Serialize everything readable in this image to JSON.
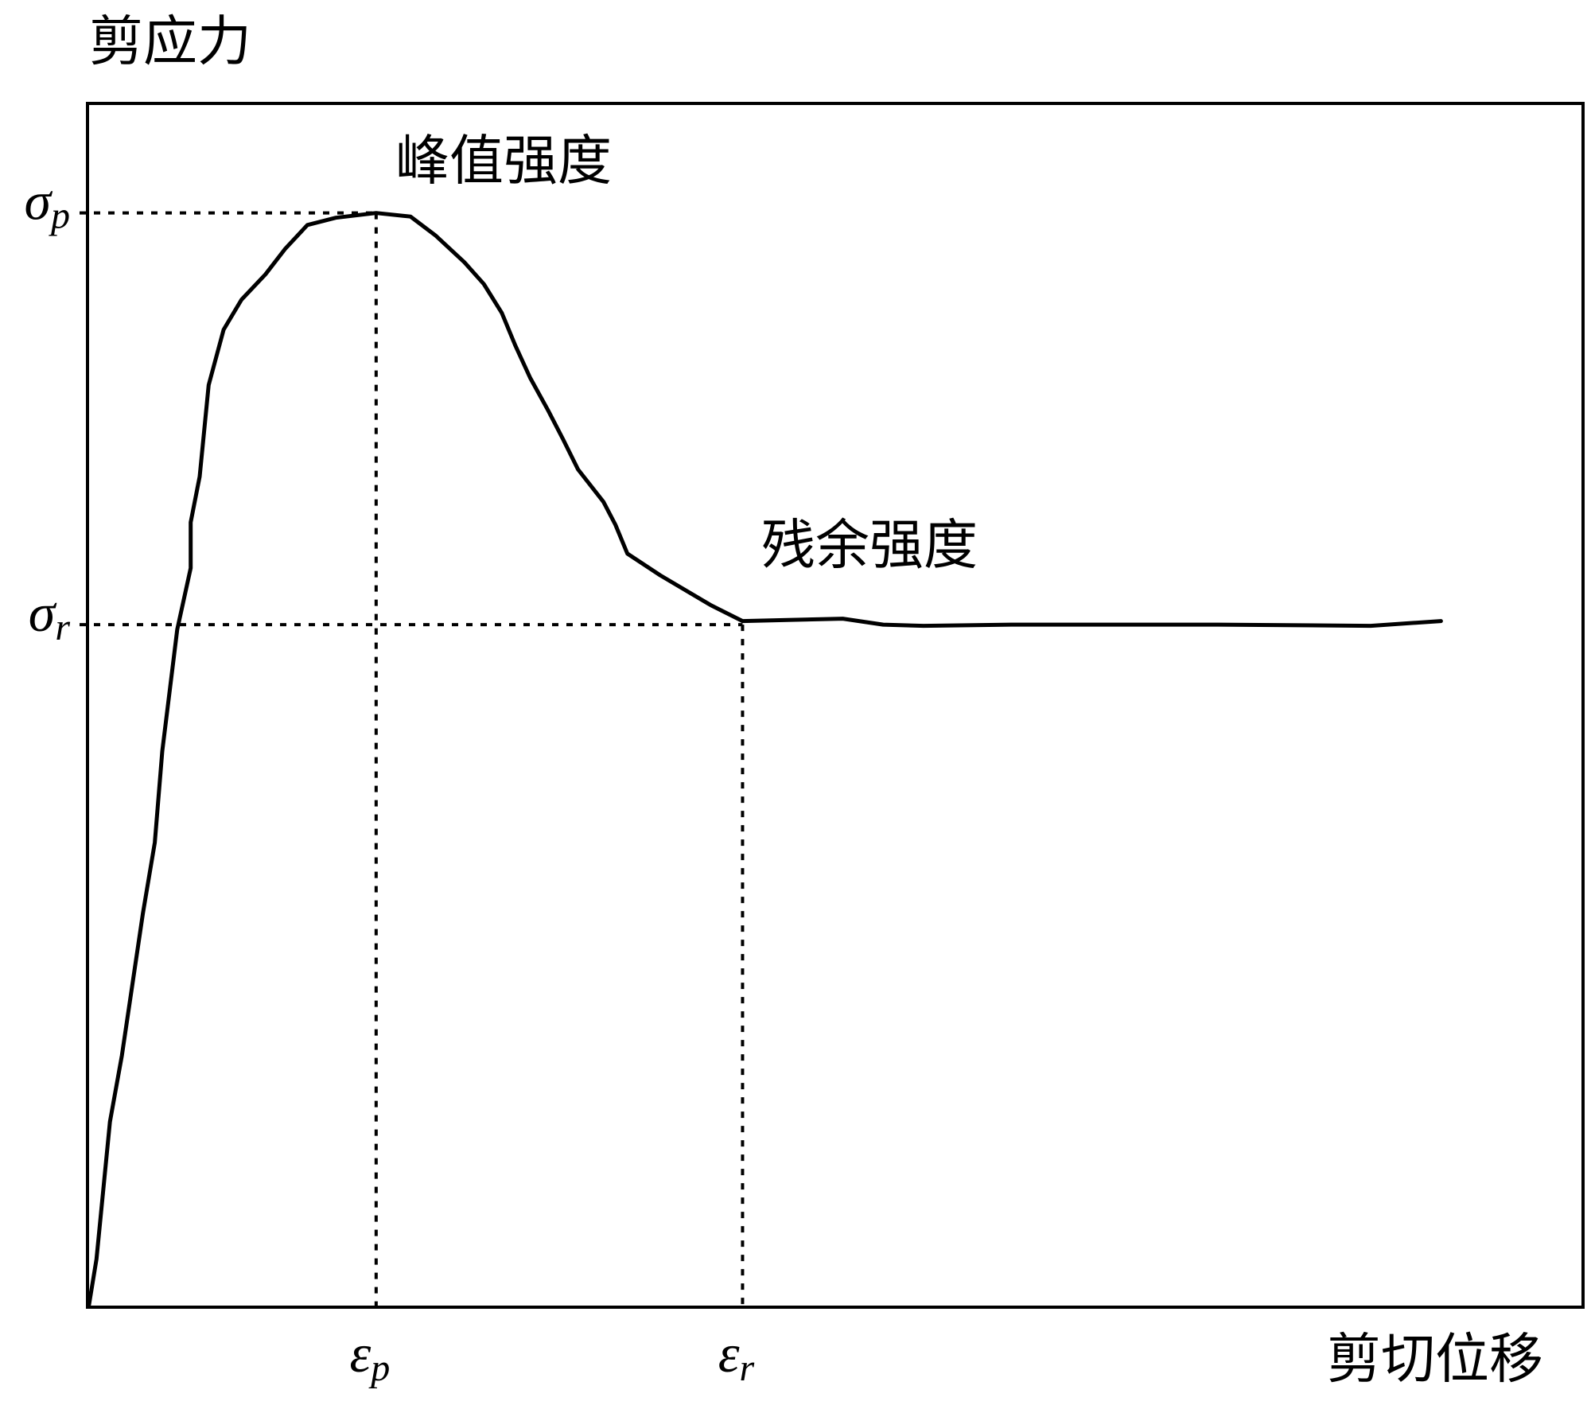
{
  "chart_data": {
    "type": "line",
    "y_label": "剪应力",
    "x_label": "剪切位移",
    "annotations": [
      "峰值强度",
      "残余强度"
    ],
    "xlim": [
      0,
      100
    ],
    "ylim": [
      0,
      100
    ],
    "xticks": [
      {
        "value": 19.3,
        "label": "εp"
      },
      {
        "value": 43.8,
        "label": "εr"
      }
    ],
    "yticks": [
      {
        "value": 90.9,
        "label": "σp"
      },
      {
        "value": 56.7,
        "label": "σr"
      }
    ],
    "grid": false,
    "series": [
      {
        "color": "#000000",
        "x": [
          0.1,
          0.6,
          1.5,
          2.3,
          3.0,
          3.7,
          4.5,
          5.0,
          6.0,
          6.9,
          6.9,
          7.5,
          8.1,
          9.1,
          10.3,
          11.9,
          13.2,
          14.7,
          16.6,
          19.3,
          21.6,
          23.3,
          25.2,
          26.5,
          27.7,
          28.6,
          29.6,
          30.8,
          31.8,
          32.8,
          34.5,
          35.3,
          36.1,
          38.3,
          41.7,
          43.8,
          47.1,
          50.5,
          53.2,
          55.9,
          62.0,
          75.6,
          85.8,
          90.5
        ],
        "values": [
          0.2,
          4.0,
          15.4,
          20.9,
          26.8,
          32.7,
          38.6,
          46.2,
          56.3,
          61.4,
          65.2,
          69.0,
          76.6,
          81.2,
          83.7,
          85.8,
          87.9,
          89.9,
          90.5,
          90.9,
          90.6,
          89.0,
          86.8,
          85.0,
          82.6,
          79.9,
          77.2,
          74.5,
          72.1,
          69.6,
          66.9,
          65.0,
          62.6,
          60.8,
          58.3,
          57.0,
          57.1,
          57.2,
          56.7,
          56.6,
          56.7,
          56.7,
          56.6,
          57.0
        ]
      }
    ]
  }
}
